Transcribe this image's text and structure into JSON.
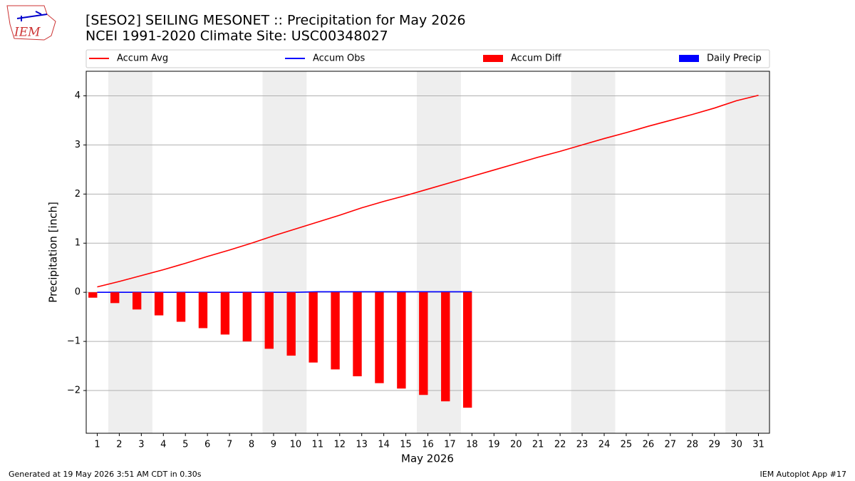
{
  "logo_text": "IEM",
  "chart_data": {
    "type": "combo",
    "title": "[SESO2] SEILING MESONET :: Precipitation for May 2026",
    "subtitle": "NCEI 1991-2020 Climate Site: USC00348027",
    "xlabel": "May 2026",
    "ylabel": "Precipitation [inch]",
    "x": [
      1,
      2,
      3,
      4,
      5,
      6,
      7,
      8,
      9,
      10,
      11,
      12,
      13,
      14,
      15,
      16,
      17,
      18,
      19,
      20,
      21,
      22,
      23,
      24,
      25,
      26,
      27,
      28,
      29,
      30,
      31
    ],
    "xlim": [
      0.5,
      31.5
    ],
    "xticks": [
      1,
      2,
      3,
      4,
      5,
      6,
      7,
      8,
      9,
      10,
      11,
      12,
      13,
      14,
      15,
      16,
      17,
      18,
      19,
      20,
      21,
      22,
      23,
      24,
      25,
      26,
      27,
      28,
      29,
      30,
      31
    ],
    "ylim": [
      -2.87,
      4.5
    ],
    "yticks": [
      {
        "value": -2,
        "label": "−2"
      },
      {
        "value": -1,
        "label": "−1"
      },
      0,
      1,
      2,
      3,
      4
    ],
    "grid": true,
    "weekend_shading": [
      [
        1.5,
        3.5
      ],
      [
        8.5,
        10.5
      ],
      [
        15.5,
        17.5
      ],
      [
        22.5,
        24.5
      ],
      [
        29.5,
        31.5
      ]
    ],
    "series": [
      {
        "name": "Accum Avg",
        "type": "line",
        "color": "#ff0000",
        "values": [
          0.11,
          0.22,
          0.34,
          0.46,
          0.59,
          0.73,
          0.86,
          1.0,
          1.15,
          1.29,
          1.43,
          1.57,
          1.72,
          1.85,
          1.97,
          2.1,
          2.23,
          2.36,
          2.49,
          2.62,
          2.75,
          2.87,
          3.0,
          3.13,
          3.25,
          3.38,
          3.5,
          3.62,
          3.75,
          3.9,
          4.01
        ]
      },
      {
        "name": "Accum Obs",
        "type": "line",
        "color": "#0000ff",
        "values": [
          0,
          0,
          0,
          0,
          0,
          0,
          0,
          0,
          0,
          0,
          0.01,
          0.01,
          0.01,
          0.01,
          0.01,
          0.01,
          0.01,
          0.01,
          null,
          null,
          null,
          null,
          null,
          null,
          null,
          null,
          null,
          null,
          null,
          null,
          null
        ]
      },
      {
        "name": "Accum Diff",
        "type": "bar",
        "offset": "left",
        "color": "#ff0000",
        "values": [
          -0.11,
          -0.22,
          -0.35,
          -0.47,
          -0.6,
          -0.73,
          -0.86,
          -1.0,
          -1.15,
          -1.29,
          -1.43,
          -1.57,
          -1.71,
          -1.85,
          -1.96,
          -2.09,
          -2.22,
          -2.35,
          null,
          null,
          null,
          null,
          null,
          null,
          null,
          null,
          null,
          null,
          null,
          null,
          null
        ]
      },
      {
        "name": "Daily Precip",
        "type": "bar",
        "offset": "right",
        "color": "#0000ff",
        "values": [
          0,
          0,
          0,
          0,
          0,
          0,
          0,
          0,
          0,
          0,
          0,
          0,
          0,
          0,
          0,
          0,
          0,
          0,
          null,
          null,
          null,
          null,
          null,
          null,
          null,
          null,
          null,
          null,
          null,
          null,
          null
        ]
      }
    ],
    "legend": "top",
    "footer_left": "Generated at 19 May 2026 3:51 AM CDT in 0.30s",
    "footer_right": "IEM Autoplot App #17"
  }
}
